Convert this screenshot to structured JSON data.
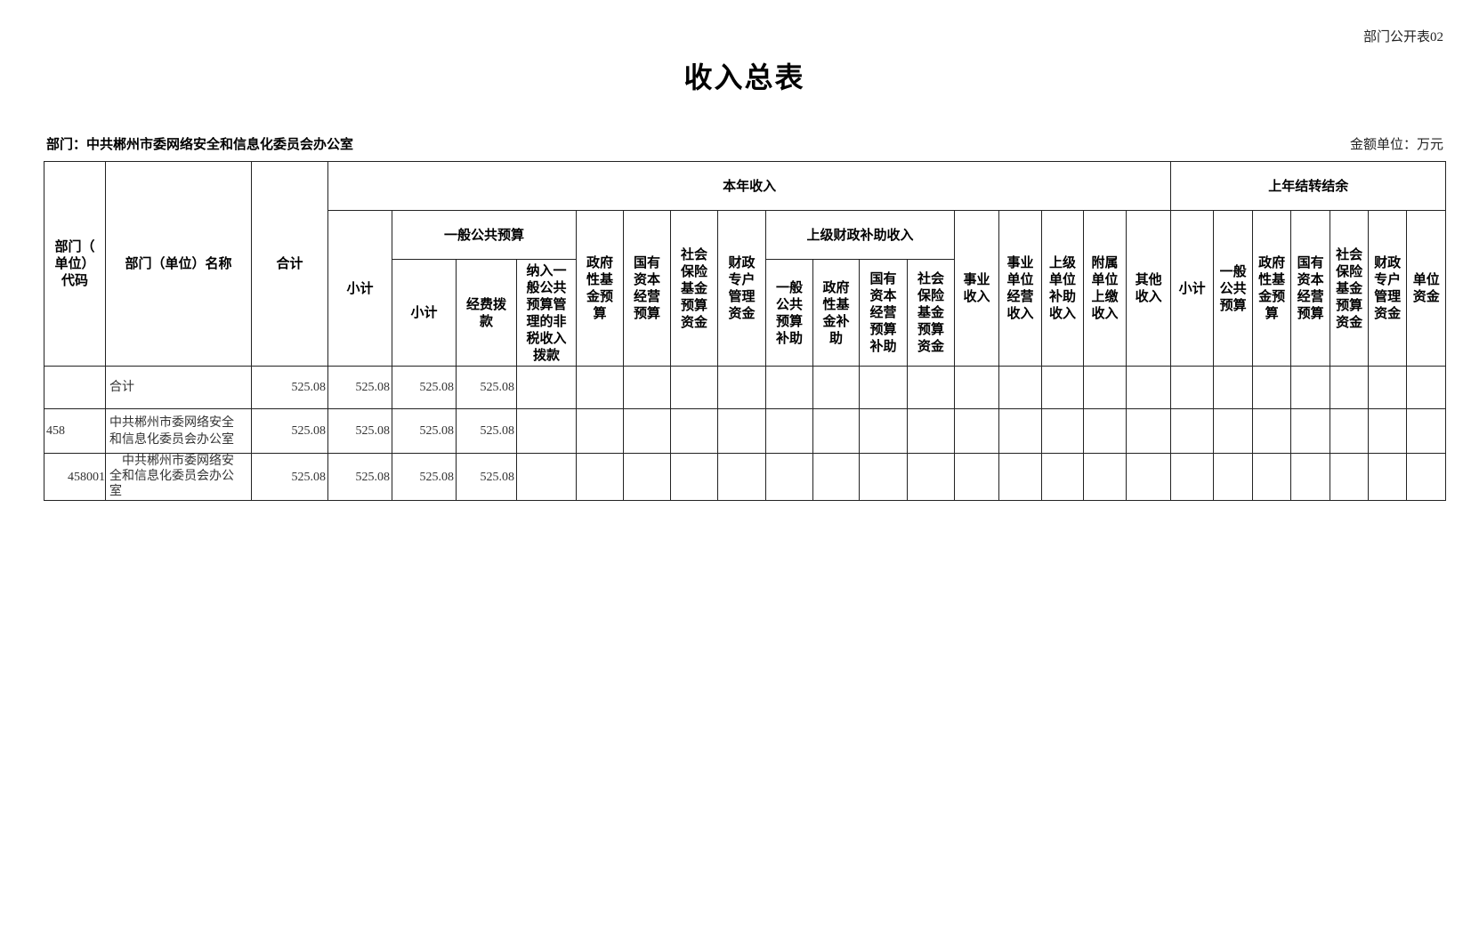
{
  "form_no": "部门公开表02",
  "title": "收入总表",
  "department_label": "部门：中共郴州市委网络安全和信息化委员会办公室",
  "unit_label": "金额单位：万元",
  "header": {
    "code": "部门（\n单位）\n代码",
    "name": "部门（单位）名称",
    "total": "合计",
    "current_year": "本年收入",
    "prior_year": "上年结转结余",
    "cy_subtotal": "小计",
    "general_budget": "一般公共预算",
    "gb_subtotal": "小计",
    "gb_funding": "经费拨\n款",
    "gb_nontax": "纳入一\n般公共\n预算管\n理的非\n税收入\n拨款",
    "gov_fund": "政府\n性基\n金预\n算",
    "state_capital": "国有\n资本\n经营\n预算",
    "social_insurance": "社会\n保险\n基金\n预算\n资金",
    "fiscal_special": "财政\n专户\n管理\n资金",
    "superior_subsidy": "上级财政补助收入",
    "ss_general": "一般\n公共\n预算\n补助",
    "ss_gov_fund": "政府\n性基\n金补\n助",
    "ss_state_capital": "国有\n资本\n经营\n预算\n补助",
    "ss_social": "社会\n保险\n基金\n预算\n资金",
    "business_income": "事业\n收入",
    "business_operating": "事业\n单位\n经营\n收入",
    "superior_unit_subsidy": "上级\n单位\n补助\n收入",
    "affiliated_payment": "附属\n单位\n上缴\n收入",
    "other_income": "其他\n收入",
    "py_subtotal": "小计",
    "py_general": "一般\n公共\n预算",
    "py_gov_fund": "政府\n性基\n金预\n算",
    "py_state_capital": "国有\n资本\n经营\n预算",
    "py_social": "社会\n保险\n基金\n预算\n资金",
    "py_fiscal_special": "财政\n专户\n管理\n资金",
    "py_unit_funds": "单位\n资金"
  },
  "rows": [
    {
      "code": "",
      "name": "合计",
      "values": [
        "525.08",
        "525.08",
        "525.08",
        "525.08",
        "",
        "",
        "",
        "",
        "",
        "",
        "",
        "",
        "",
        "",
        "",
        "",
        "",
        "",
        "",
        "",
        "",
        "",
        "",
        "",
        "",
        ""
      ]
    },
    {
      "code": "458",
      "name": "中共郴州市委网络安全\n和信息化委员会办公室",
      "values": [
        "525.08",
        "525.08",
        "525.08",
        "525.08",
        "",
        "",
        "",
        "",
        "",
        "",
        "",
        "",
        "",
        "",
        "",
        "",
        "",
        "",
        "",
        "",
        "",
        "",
        "",
        "",
        "",
        ""
      ]
    },
    {
      "code": "458001",
      "name": "　中共郴州市委网络安\n全和信息化委员会办公\n室",
      "values": [
        "525.08",
        "525.08",
        "525.08",
        "525.08",
        "",
        "",
        "",
        "",
        "",
        "",
        "",
        "",
        "",
        "",
        "",
        "",
        "",
        "",
        "",
        "",
        "",
        "",
        "",
        "",
        "",
        ""
      ]
    }
  ]
}
